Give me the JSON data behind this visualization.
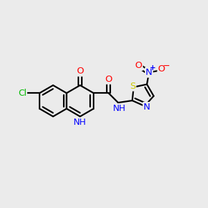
{
  "bg_color": "#ebebeb",
  "bond_color": "#000000",
  "line_width": 1.6,
  "atom_colors": {
    "O": "#ff0000",
    "N": "#0000ff",
    "S": "#cccc00",
    "Cl": "#00bb00",
    "C": "#000000",
    "H": "#000000"
  },
  "font_size": 9.5,
  "fig_width": 3.0,
  "fig_height": 3.0,
  "dpi": 100
}
